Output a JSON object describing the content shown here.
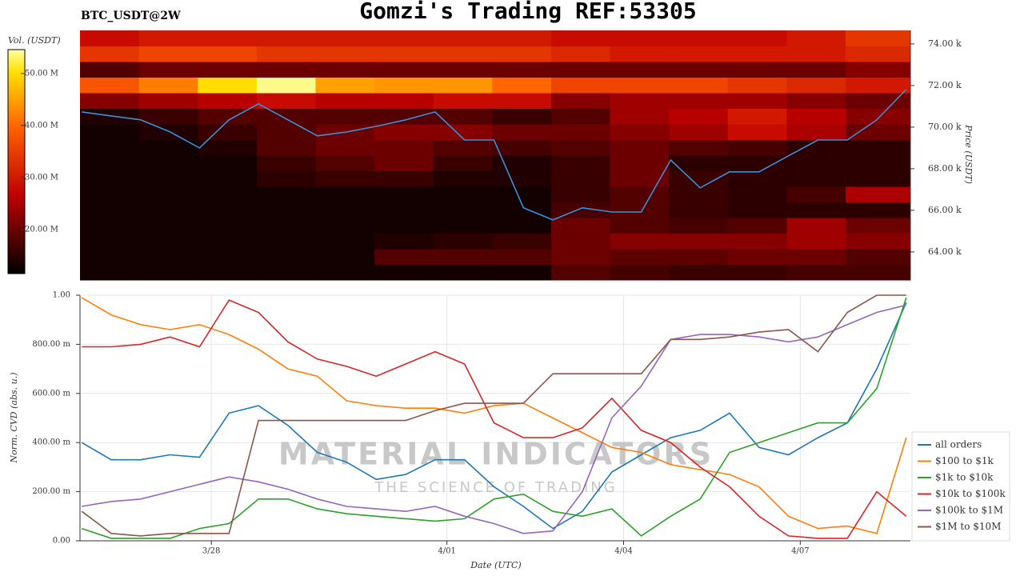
{
  "chart_data": [
    {
      "type": "heatmap",
      "title": "Gomzi's Trading REF:53305",
      "subtitle": "BTC_USDT@2W",
      "ylabel": "Price (USDT)",
      "colorbar_label": "Vol. (USDT)",
      "xlim": [
        -2.23,
        11.87
      ],
      "ylim": [
        62650,
        74650
      ],
      "yticks": [
        {
          "value": 64000,
          "label": "64.00 k"
        },
        {
          "value": 66000,
          "label": "66.00 k"
        },
        {
          "value": 68000,
          "label": "68.00 k"
        },
        {
          "value": 70000,
          "label": "70.00 k"
        },
        {
          "value": 72000,
          "label": "72.00 k"
        },
        {
          "value": 74000,
          "label": "74.00 k"
        }
      ],
      "clim": [
        11500000,
        54600000
      ],
      "cticks": [
        {
          "value": 20000000,
          "label": "20.00 M"
        },
        {
          "value": 30000000,
          "label": "30.00 M"
        },
        {
          "value": 40000000,
          "label": "40.00 M"
        },
        {
          "value": 50000000,
          "label": "50.00 M"
        }
      ],
      "heatmap": {
        "x_edges": [
          -2.23,
          -1.23,
          -0.23,
          0.77,
          1.77,
          2.77,
          3.77,
          4.77,
          5.77,
          6.77,
          7.77,
          8.77,
          9.77,
          10.77,
          11.87
        ],
        "y_edges": [
          62650,
          63400,
          64150,
          64900,
          65650,
          66400,
          67150,
          67900,
          68650,
          69400,
          70150,
          70900,
          71650,
          72400,
          73150,
          73900,
          74650
        ],
        "values": [
          [
            13000000.0,
            13000000.0,
            13000000.0,
            13000000.0,
            13000000.0,
            13000000.0,
            13000000.0,
            13000000.0,
            18000000.0,
            17000000.0,
            16000000.0,
            16000000.0,
            17000000.0,
            17000000.0
          ],
          [
            13000000.0,
            13000000.0,
            13000000.0,
            13000000.0,
            13000000.0,
            18000000.0,
            18000000.0,
            18000000.0,
            20000000.0,
            19000000.0,
            19000000.0,
            20000000.0,
            20000000.0,
            18000000.0
          ],
          [
            13000000.0,
            13000000.0,
            13000000.0,
            13000000.0,
            13000000.0,
            14000000.0,
            15000000.0,
            16000000.0,
            20000000.0,
            22000000.0,
            22000000.0,
            22000000.0,
            24000000.0,
            22000000.0
          ],
          [
            13000000.0,
            13000000.0,
            13000000.0,
            13000000.0,
            13000000.0,
            13000000.0,
            13000000.0,
            13000000.0,
            20000000.0,
            18000000.0,
            17000000.0,
            18000000.0,
            24000000.0,
            20000000.0
          ],
          [
            13000000.0,
            13000000.0,
            13000000.0,
            13000000.0,
            13000000.0,
            13000000.0,
            13000000.0,
            13000000.0,
            17000000.0,
            18000000.0,
            16000000.0,
            15000000.0,
            15000000.0,
            15000000.0
          ],
          [
            13000000.0,
            13000000.0,
            13000000.0,
            13000000.0,
            13000000.0,
            13000000.0,
            13000000.0,
            13000000.0,
            16000000.0,
            18000000.0,
            16000000.0,
            15000000.0,
            17000000.0,
            25000000.0
          ],
          [
            13000000.0,
            13000000.0,
            13000000.0,
            15000000.0,
            16000000.0,
            16000000.0,
            14000000.0,
            14000000.0,
            16000000.0,
            20000000.0,
            16000000.0,
            15000000.0,
            15000000.0,
            15000000.0
          ],
          [
            13000000.0,
            13000000.0,
            13000000.0,
            16000000.0,
            18000000.0,
            20000000.0,
            16000000.0,
            14000000.0,
            16000000.0,
            20000000.0,
            15000000.0,
            15000000.0,
            15000000.0,
            15000000.0
          ],
          [
            13000000.0,
            13000000.0,
            14000000.0,
            18000000.0,
            20000000.0,
            20000000.0,
            18000000.0,
            17000000.0,
            18000000.0,
            20000000.0,
            18000000.0,
            17000000.0,
            15000000.0,
            15000000.0
          ],
          [
            13000000.0,
            14000000.0,
            16000000.0,
            18000000.0,
            20000000.0,
            22000000.0,
            22000000.0,
            20000000.0,
            20000000.0,
            22000000.0,
            24000000.0,
            28000000.0,
            25000000.0,
            20000000.0
          ],
          [
            14000000.0,
            16000000.0,
            18000000.0,
            18000000.0,
            18000000.0,
            18000000.0,
            18000000.0,
            16000000.0,
            18000000.0,
            24000000.0,
            26000000.0,
            30000000.0,
            26000000.0,
            22000000.0
          ],
          [
            22000000.0,
            24000000.0,
            26000000.0,
            28000000.0,
            26000000.0,
            26000000.0,
            28000000.0,
            28000000.0,
            22000000.0,
            24000000.0,
            24000000.0,
            24000000.0,
            22000000.0,
            20000000.0
          ],
          [
            38000000.0,
            42000000.0,
            50000000.0,
            54000000.0,
            45000000.0,
            44000000.0,
            44000000.0,
            40000000.0,
            36000000.0,
            36000000.0,
            36000000.0,
            34000000.0,
            32000000.0,
            30000000.0
          ],
          [
            18000000.0,
            20000000.0,
            20000000.0,
            20000000.0,
            20000000.0,
            20000000.0,
            20000000.0,
            20000000.0,
            20000000.0,
            20000000.0,
            20000000.0,
            20000000.0,
            20000000.0,
            22000000.0
          ],
          [
            34000000.0,
            36000000.0,
            36000000.0,
            34000000.0,
            34000000.0,
            34000000.0,
            34000000.0,
            34000000.0,
            32000000.0,
            30000000.0,
            30000000.0,
            30000000.0,
            30000000.0,
            32000000.0
          ],
          [
            28000000.0,
            30000000.0,
            30000000.0,
            30000000.0,
            30000000.0,
            30000000.0,
            30000000.0,
            30000000.0,
            28000000.0,
            28000000.0,
            28000000.0,
            28000000.0,
            30000000.0,
            34000000.0
          ]
        ]
      },
      "series": [
        {
          "name": "price",
          "color": "#3d8fd6",
          "x": [
            -2.2,
            -1.7,
            -1.2,
            -0.7,
            -0.2,
            0.3,
            0.8,
            1.3,
            1.8,
            2.3,
            2.8,
            3.3,
            3.8,
            4.3,
            4.8,
            5.3,
            5.8,
            6.3,
            6.8,
            7.3,
            7.8,
            8.3,
            8.8,
            9.3,
            9.8,
            10.3,
            10.8,
            11.3,
            11.8
          ],
          "values": [
            70730,
            70540,
            70350,
            69770,
            69000,
            70350,
            71120,
            70350,
            69580,
            69770,
            70040,
            70350,
            70730,
            69380,
            69380,
            66120,
            65540,
            66120,
            65920,
            65920,
            68420,
            67080,
            67850,
            67850,
            68620,
            69380,
            69380,
            70350,
            71810
          ]
        }
      ]
    },
    {
      "type": "line",
      "xlabel": "Date (UTC)",
      "ylabel": "Norm. CVD (abs. u.)",
      "watermark": "MATERIAL INDICATORS",
      "watermark_sub": "THE SCIENCE OF TRADING",
      "grid": true,
      "xlim": [
        -2.23,
        11.87
      ],
      "ylim": [
        0,
        1
      ],
      "xticks": [
        {
          "value": 0,
          "label": "3/28"
        },
        {
          "value": 4,
          "label": "4/01"
        },
        {
          "value": 7,
          "label": "4/04"
        },
        {
          "value": 10,
          "label": "4/07"
        }
      ],
      "yticks": [
        {
          "value": 0,
          "label": "0.00"
        },
        {
          "value": 0.2,
          "label": "200.00 m"
        },
        {
          "value": 0.4,
          "label": "400.00 m"
        },
        {
          "value": 0.6,
          "label": "600.00 m"
        },
        {
          "value": 0.8,
          "label": "800.00 m"
        },
        {
          "value": 1,
          "label": "1.00"
        }
      ],
      "x": [
        -2.2,
        -1.7,
        -1.2,
        -0.7,
        -0.2,
        0.3,
        0.8,
        1.3,
        1.8,
        2.3,
        2.8,
        3.3,
        3.8,
        4.3,
        4.8,
        5.3,
        5.8,
        6.3,
        6.8,
        7.3,
        7.8,
        8.3,
        8.8,
        9.3,
        9.8,
        10.3,
        10.8,
        11.3,
        11.8
      ],
      "series": [
        {
          "name": "all orders",
          "color": "#1f77b4",
          "values": [
            0.4,
            0.33,
            0.33,
            0.35,
            0.34,
            0.52,
            0.55,
            0.47,
            0.36,
            0.32,
            0.25,
            0.27,
            0.33,
            0.33,
            0.22,
            0.14,
            0.05,
            0.12,
            0.28,
            0.35,
            0.42,
            0.45,
            0.52,
            0.38,
            0.35,
            0.42,
            0.48,
            0.7,
            0.97
          ]
        },
        {
          "name": "$100 to $1k",
          "color": "#ff7f0e",
          "values": [
            0.99,
            0.92,
            0.88,
            0.86,
            0.88,
            0.84,
            0.78,
            0.7,
            0.67,
            0.57,
            0.55,
            0.54,
            0.54,
            0.52,
            0.55,
            0.56,
            0.5,
            0.44,
            0.38,
            0.36,
            0.31,
            0.29,
            0.27,
            0.22,
            0.1,
            0.05,
            0.06,
            0.03,
            0.42
          ]
        },
        {
          "name": "$1k to $10k",
          "color": "#2ca02c",
          "values": [
            0.05,
            0.01,
            0.01,
            0.01,
            0.05,
            0.07,
            0.17,
            0.17,
            0.13,
            0.11,
            0.1,
            0.09,
            0.08,
            0.09,
            0.17,
            0.19,
            0.12,
            0.1,
            0.13,
            0.02,
            0.1,
            0.17,
            0.36,
            0.4,
            0.44,
            0.48,
            0.48,
            0.62,
            0.99
          ]
        },
        {
          "name": "$10k to $100k",
          "color": "#d62728",
          "values": [
            0.79,
            0.79,
            0.8,
            0.83,
            0.79,
            0.98,
            0.93,
            0.81,
            0.74,
            0.71,
            0.67,
            0.72,
            0.77,
            0.72,
            0.48,
            0.42,
            0.42,
            0.46,
            0.58,
            0.45,
            0.4,
            0.3,
            0.22,
            0.1,
            0.02,
            0.01,
            0.01,
            0.2,
            0.1
          ]
        },
        {
          "name": "$100k to $1M",
          "color": "#9467bd",
          "values": [
            0.14,
            0.16,
            0.17,
            0.2,
            0.23,
            0.26,
            0.24,
            0.21,
            0.17,
            0.14,
            0.13,
            0.12,
            0.14,
            0.1,
            0.07,
            0.03,
            0.04,
            0.2,
            0.5,
            0.63,
            0.82,
            0.84,
            0.84,
            0.83,
            0.81,
            0.83,
            0.88,
            0.93,
            0.96
          ]
        },
        {
          "name": "$1M to $10M",
          "color": "#8c564b",
          "values": [
            0.12,
            0.03,
            0.02,
            0.03,
            0.03,
            0.03,
            0.49,
            0.49,
            0.49,
            0.49,
            0.49,
            0.49,
            0.53,
            0.56,
            0.56,
            0.56,
            0.68,
            0.68,
            0.68,
            0.68,
            0.82,
            0.82,
            0.83,
            0.85,
            0.86,
            0.77,
            0.93,
            1.0,
            1.0
          ]
        }
      ]
    }
  ]
}
